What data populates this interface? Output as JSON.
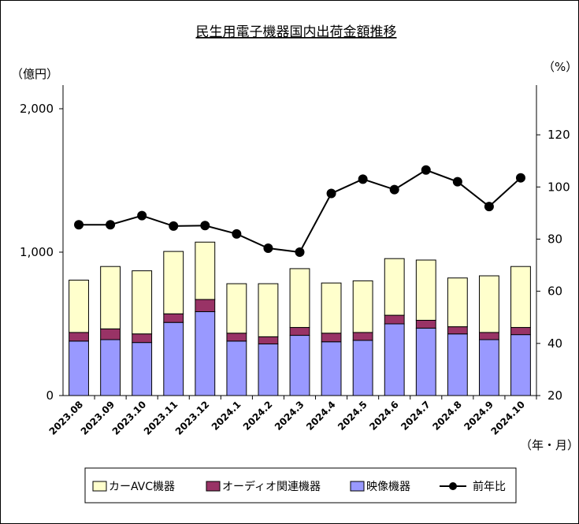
{
  "chart_data": {
    "type": "bar+line",
    "title": "民生用電子機器国内出荷金額推移",
    "y_left_unit": "（億円）",
    "y_right_unit": "（%）",
    "x_unit": "（年・月）",
    "y_left_ticks": [
      "0",
      "1,000",
      "2,000"
    ],
    "y_left_lim": [
      0,
      2000
    ],
    "y_right_ticks": [
      "20",
      "40",
      "60",
      "80",
      "100",
      "120"
    ],
    "y_right_lim": [
      20,
      130
    ],
    "categories": [
      "2023.08",
      "2023.09",
      "2023.10",
      "2023.11",
      "2023.12",
      "2024.1",
      "2024.2",
      "2024.3",
      "2024.4",
      "2024.5",
      "2024.6",
      "2024.7",
      "2024.8",
      "2024.9",
      "2024.10"
    ],
    "series": [
      {
        "name": "映像機器",
        "kind": "bar",
        "axis": "left",
        "color": "#9999ff",
        "values": [
          380,
          390,
          370,
          510,
          585,
          380,
          360,
          420,
          375,
          385,
          500,
          470,
          430,
          390,
          425
        ]
      },
      {
        "name": "オーディオ関連機器",
        "kind": "bar",
        "axis": "left",
        "color": "#993366",
        "values": [
          60,
          75,
          60,
          60,
          85,
          55,
          50,
          55,
          60,
          55,
          60,
          55,
          50,
          50,
          50
        ]
      },
      {
        "name": "カーAVC機器",
        "kind": "bar",
        "axis": "left",
        "color": "#ffffcc",
        "values": [
          365,
          435,
          440,
          435,
          400,
          345,
          370,
          410,
          350,
          360,
          395,
          420,
          340,
          395,
          425
        ]
      },
      {
        "name": "前年比",
        "kind": "line",
        "axis": "right",
        "color": "#000000",
        "values": [
          85.5,
          85.5,
          89,
          85,
          85.2,
          82,
          76.5,
          75,
          97.5,
          103,
          99,
          106.5,
          102,
          92.5,
          103.5
        ]
      }
    ],
    "legend_position": "bottom",
    "grid": false
  }
}
